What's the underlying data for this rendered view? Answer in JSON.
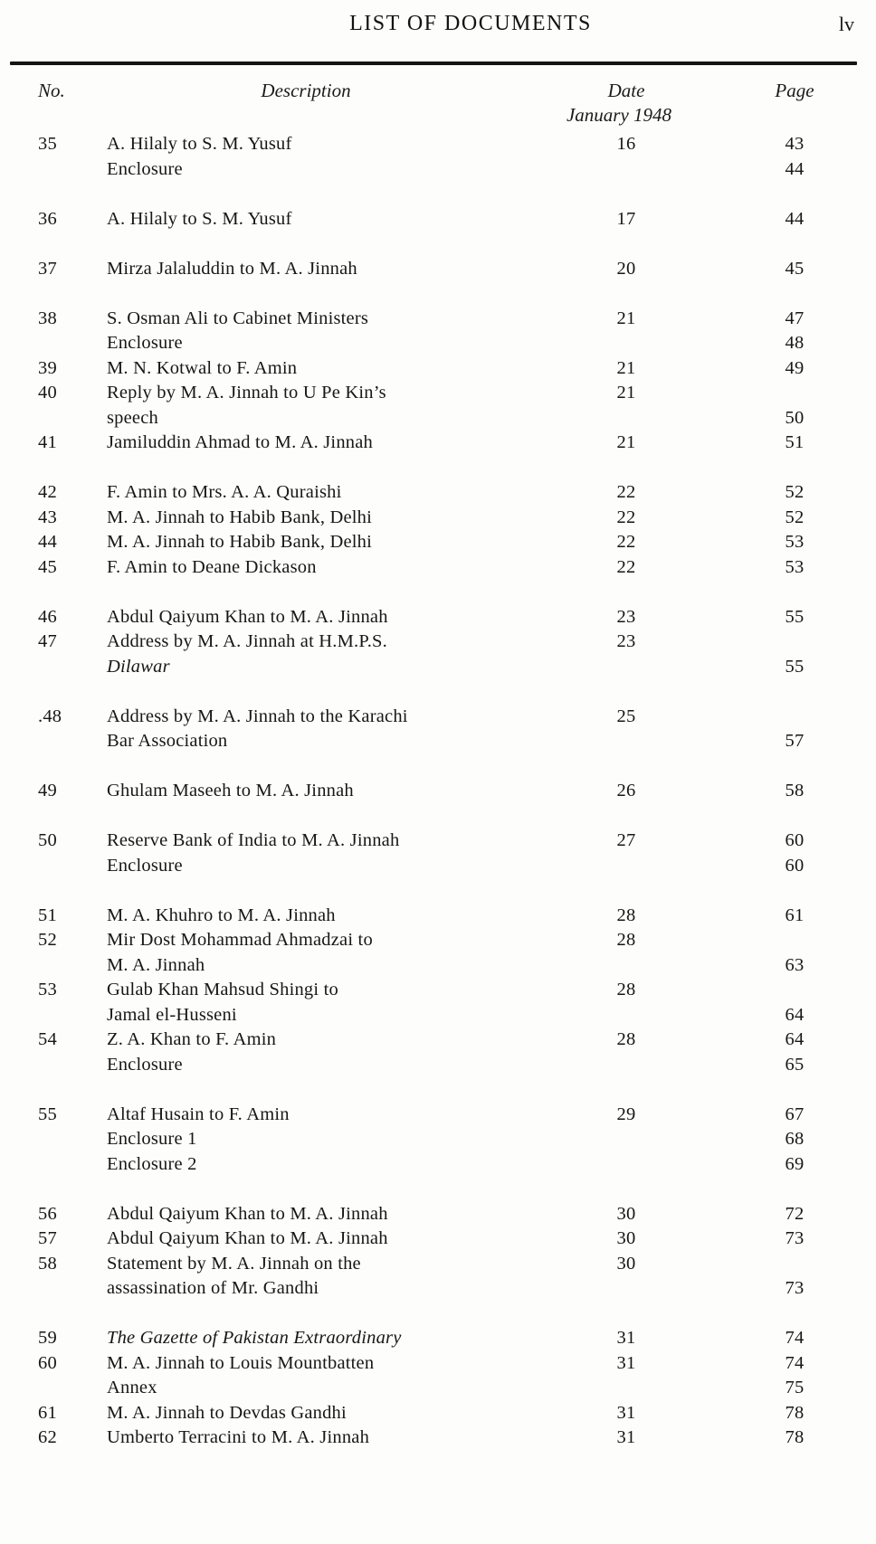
{
  "page": {
    "title": "LIST OF DOCUMENTS",
    "folio": "lv"
  },
  "table": {
    "headers": {
      "no": "No.",
      "description": "Description",
      "date": "Date",
      "date_sub": "January 1948",
      "page": "Page"
    },
    "groups": [
      {
        "rows": [
          {
            "no": "35",
            "lines": [
              {
                "desc": "A. Hilaly to S. M. Yusuf",
                "date": "16",
                "page": "43"
              },
              {
                "desc": "Enclosure",
                "page": "44"
              }
            ]
          }
        ]
      },
      {
        "rows": [
          {
            "no": "36",
            "lines": [
              {
                "desc": "A. Hilaly to S. M. Yusuf",
                "date": "17",
                "page": "44"
              }
            ]
          }
        ]
      },
      {
        "rows": [
          {
            "no": "37",
            "lines": [
              {
                "desc": "Mirza Jalaluddin to M. A. Jinnah",
                "date": "20",
                "page": "45"
              }
            ]
          }
        ]
      },
      {
        "rows": [
          {
            "no": "38",
            "lines": [
              {
                "desc": "S. Osman Ali to Cabinet Ministers",
                "date": "21",
                "page": "47"
              },
              {
                "desc": "Enclosure",
                "page": "48"
              }
            ]
          },
          {
            "no": "39",
            "lines": [
              {
                "desc": "M. N. Kotwal to F. Amin",
                "date": "21",
                "page": "49"
              }
            ]
          },
          {
            "no": "40",
            "lines": [
              {
                "desc": "Reply by M. A. Jinnah to U Pe Kin’s",
                "date": "21"
              },
              {
                "desc": "speech",
                "page": "50"
              }
            ]
          },
          {
            "no": "41",
            "lines": [
              {
                "desc": "Jamiluddin Ahmad to M. A. Jinnah",
                "date": "21",
                "page": "51"
              }
            ]
          }
        ]
      },
      {
        "rows": [
          {
            "no": "42",
            "lines": [
              {
                "desc": "F. Amin to Mrs. A. A. Quraishi",
                "date": "22",
                "page": "52"
              }
            ]
          },
          {
            "no": "43",
            "lines": [
              {
                "desc": "M. A. Jinnah to Habib Bank, Delhi",
                "date": "22",
                "page": "52"
              }
            ]
          },
          {
            "no": "44",
            "lines": [
              {
                "desc": "M. A. Jinnah to Habib Bank, Delhi",
                "date": "22",
                "page": "53"
              }
            ]
          },
          {
            "no": "45",
            "lines": [
              {
                "desc": "F. Amin to Deane Dickason",
                "date": "22",
                "page": "53"
              }
            ]
          }
        ]
      },
      {
        "rows": [
          {
            "no": "46",
            "lines": [
              {
                "desc": "Abdul Qaiyum Khan to M. A. Jinnah",
                "date": "23",
                "page": "55"
              }
            ]
          },
          {
            "no": "47",
            "lines": [
              {
                "desc": "Address by M. A. Jinnah at H.M.P.S.",
                "date": "23"
              },
              {
                "desc": "Dilawar",
                "italic": true,
                "page": "55"
              }
            ]
          }
        ]
      },
      {
        "rows": [
          {
            "no": ".48",
            "lines": [
              {
                "desc": "Address by M. A. Jinnah to the Karachi",
                "date": "25"
              },
              {
                "desc": "Bar Association",
                "page": "57"
              }
            ]
          }
        ]
      },
      {
        "rows": [
          {
            "no": "49",
            "lines": [
              {
                "desc": "Ghulam Maseeh to M. A. Jinnah",
                "date": "26",
                "page": "58"
              }
            ]
          }
        ]
      },
      {
        "rows": [
          {
            "no": "50",
            "lines": [
              {
                "desc": "Reserve Bank of India to M. A. Jinnah",
                "date": "27",
                "page": "60"
              },
              {
                "desc": "Enclosure",
                "page": "60"
              }
            ]
          }
        ]
      },
      {
        "rows": [
          {
            "no": "51",
            "lines": [
              {
                "desc": "M. A. Khuhro to M. A. Jinnah",
                "date": "28",
                "page": "61"
              }
            ]
          },
          {
            "no": "52",
            "lines": [
              {
                "desc": "Mir Dost Mohammad Ahmadzai to",
                "date": "28"
              },
              {
                "desc": "M. A. Jinnah",
                "page": "63"
              }
            ]
          },
          {
            "no": "53",
            "lines": [
              {
                "desc": "Gulab Khan Mahsud Shingi to",
                "date": "28"
              },
              {
                "desc": "Jamal el-Husseni",
                "page": "64"
              }
            ]
          },
          {
            "no": "54",
            "lines": [
              {
                "desc": "Z. A. Khan to F. Amin",
                "date": "28",
                "page": "64"
              },
              {
                "desc": "Enclosure",
                "page": "65"
              }
            ]
          }
        ]
      },
      {
        "rows": [
          {
            "no": "55",
            "lines": [
              {
                "desc": "Altaf Husain to F. Amin",
                "date": "29",
                "page": "67"
              },
              {
                "desc": "Enclosure 1",
                "page": "68"
              },
              {
                "desc": "Enclosure 2",
                "page": "69"
              }
            ]
          }
        ]
      },
      {
        "rows": [
          {
            "no": "56",
            "lines": [
              {
                "desc": "Abdul Qaiyum Khan to M. A. Jinnah",
                "date": "30",
                "page": "72"
              }
            ]
          },
          {
            "no": "57",
            "lines": [
              {
                "desc": "Abdul Qaiyum Khan to M. A. Jinnah",
                "date": "30",
                "page": "73"
              }
            ]
          },
          {
            "no": "58",
            "lines": [
              {
                "desc": "Statement by M. A. Jinnah on the",
                "date": "30"
              },
              {
                "desc": "assassination of Mr. Gandhi",
                "page": "73"
              }
            ]
          }
        ]
      },
      {
        "rows": [
          {
            "no": "59",
            "lines": [
              {
                "desc": "The Gazette of Pakistan Extraordinary",
                "italic": true,
                "date": "31",
                "page": "74"
              }
            ]
          },
          {
            "no": "60",
            "lines": [
              {
                "desc": "M. A. Jinnah to Louis Mountbatten",
                "date": "31",
                "page": "74"
              },
              {
                "desc": "Annex",
                "page": "75"
              }
            ]
          },
          {
            "no": "61",
            "lines": [
              {
                "desc": "M. A. Jinnah to Devdas Gandhi",
                "date": "31",
                "page": "78"
              }
            ]
          },
          {
            "no": "62",
            "lines": [
              {
                "desc": "Umberto Terracini to M. A. Jinnah",
                "date": "31",
                "page": "78"
              }
            ]
          }
        ]
      }
    ]
  }
}
